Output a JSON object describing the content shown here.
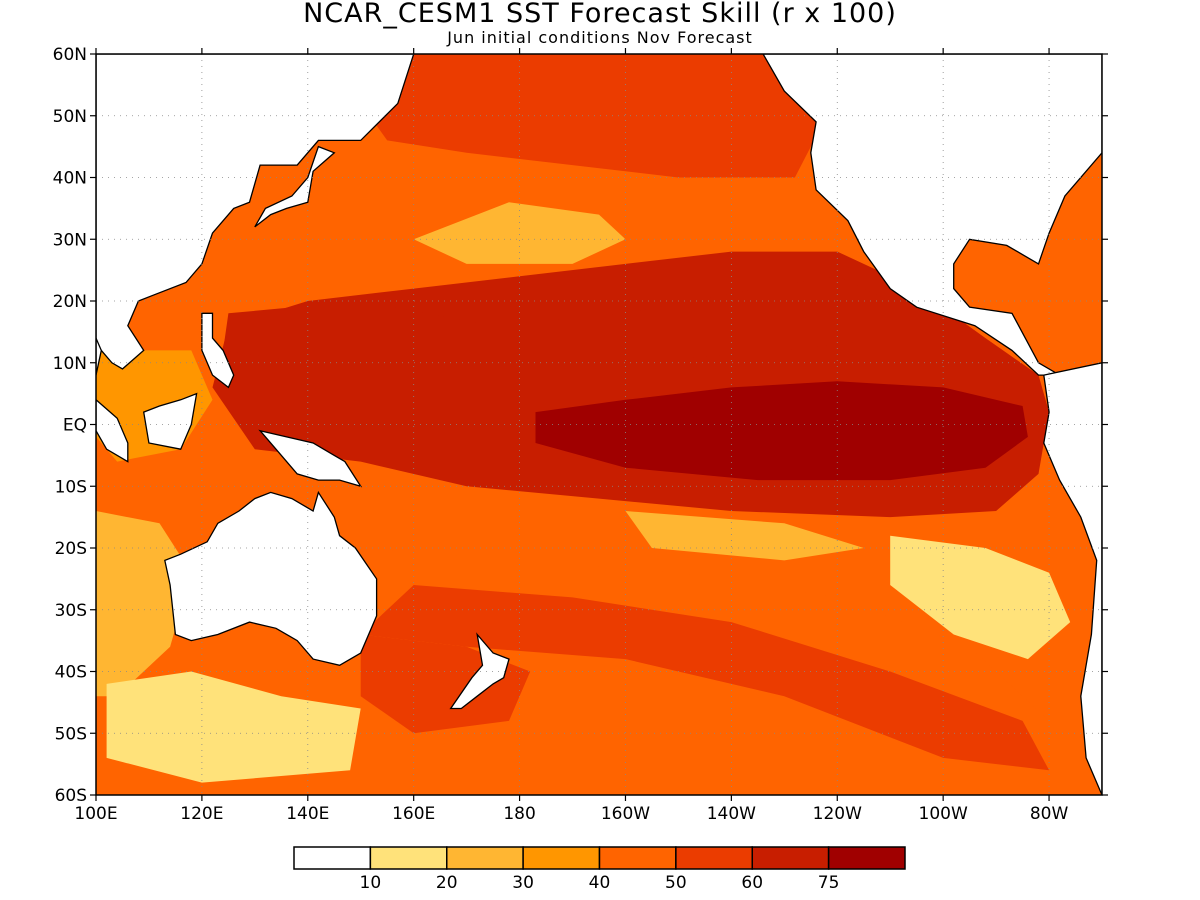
{
  "title": "NCAR_CESM1 SST Forecast Skill (r x 100)",
  "subtitle": "Jun initial conditions   Nov Forecast",
  "map": {
    "lon_range": [
      100,
      290
    ],
    "lat_range": [
      -60,
      60
    ],
    "lat_ticks": [
      {
        "value": 60,
        "label": "60N"
      },
      {
        "value": 50,
        "label": "50N"
      },
      {
        "value": 40,
        "label": "40N"
      },
      {
        "value": 30,
        "label": "30N"
      },
      {
        "value": 20,
        "label": "20N"
      },
      {
        "value": 10,
        "label": "10N"
      },
      {
        "value": 0,
        "label": "EQ"
      },
      {
        "value": -10,
        "label": "10S"
      },
      {
        "value": -20,
        "label": "20S"
      },
      {
        "value": -30,
        "label": "30S"
      },
      {
        "value": -40,
        "label": "40S"
      },
      {
        "value": -50,
        "label": "50S"
      },
      {
        "value": -60,
        "label": "60S"
      }
    ],
    "lon_ticks": [
      {
        "value": 100,
        "label": "100E"
      },
      {
        "value": 120,
        "label": "120E"
      },
      {
        "value": 140,
        "label": "140E"
      },
      {
        "value": 160,
        "label": "160E"
      },
      {
        "value": 180,
        "label": "180"
      },
      {
        "value": 200,
        "label": "160W"
      },
      {
        "value": 220,
        "label": "140W"
      },
      {
        "value": 240,
        "label": "120W"
      },
      {
        "value": 260,
        "label": "100W"
      },
      {
        "value": 280,
        "label": "80W"
      }
    ],
    "grid": "dotted"
  },
  "colorbar": {
    "colors": [
      "#ffffff",
      "#ffe27a",
      "#ffb632",
      "#ff9600",
      "#ff6400",
      "#eb3c00",
      "#c81e00",
      "#a00000"
    ],
    "labels": [
      "10",
      "20",
      "30",
      "40",
      "50",
      "60",
      "75"
    ]
  },
  "regions": [
    {
      "name": "background-skill",
      "level": 4,
      "polygon": [
        [
          100,
          60
        ],
        [
          290,
          60
        ],
        [
          290,
          -60
        ],
        [
          100,
          -60
        ]
      ]
    },
    {
      "name": "eastern-pacific-warm-tongue",
      "level": 6,
      "polygon": [
        [
          160,
          22
        ],
        [
          180,
          24
        ],
        [
          200,
          26
        ],
        [
          220,
          28
        ],
        [
          240,
          28
        ],
        [
          255,
          22
        ],
        [
          268,
          14
        ],
        [
          278,
          8
        ],
        [
          280,
          2
        ],
        [
          278,
          -8
        ],
        [
          270,
          -14
        ],
        [
          250,
          -15
        ],
        [
          220,
          -14
        ],
        [
          195,
          -12
        ],
        [
          170,
          -10
        ],
        [
          150,
          -6
        ],
        [
          130,
          -4
        ],
        [
          122,
          6
        ],
        [
          125,
          16
        ],
        [
          140,
          20
        ]
      ]
    },
    {
      "name": "north-pacific-band",
      "level": 5,
      "polygon": [
        [
          150,
          60
        ],
        [
          240,
          60
        ],
        [
          238,
          50
        ],
        [
          232,
          40
        ],
        [
          210,
          40
        ],
        [
          190,
          42
        ],
        [
          170,
          44
        ],
        [
          155,
          46
        ],
        [
          150,
          52
        ]
      ]
    },
    {
      "name": "north-tropical-high",
      "level": 6,
      "polygon": [
        [
          125,
          18
        ],
        [
          150,
          20
        ],
        [
          175,
          16
        ],
        [
          200,
          18
        ],
        [
          225,
          22
        ],
        [
          240,
          24
        ],
        [
          250,
          20
        ],
        [
          250,
          14
        ],
        [
          230,
          12
        ],
        [
          200,
          10
        ],
        [
          170,
          10
        ],
        [
          140,
          10
        ],
        [
          124,
          12
        ]
      ]
    },
    {
      "name": "equatorial-core",
      "level": 7,
      "polygon": [
        [
          183,
          2
        ],
        [
          200,
          4
        ],
        [
          220,
          6
        ],
        [
          240,
          7
        ],
        [
          260,
          6
        ],
        [
          275,
          3
        ],
        [
          276,
          -2
        ],
        [
          268,
          -7
        ],
        [
          250,
          -9
        ],
        [
          225,
          -9
        ],
        [
          200,
          -7
        ],
        [
          183,
          -3
        ]
      ]
    },
    {
      "name": "south-pacific-moderate",
      "level": 4,
      "polygon": [
        [
          150,
          -20
        ],
        [
          180,
          -22
        ],
        [
          210,
          -24
        ],
        [
          240,
          -28
        ],
        [
          265,
          -36
        ],
        [
          280,
          -48
        ],
        [
          288,
          -58
        ],
        [
          288,
          -60
        ],
        [
          130,
          -60
        ],
        [
          130,
          -44
        ],
        [
          140,
          -34
        ]
      ]
    },
    {
      "name": "south-pacific-diagonal",
      "level": 5,
      "polygon": [
        [
          160,
          -26
        ],
        [
          190,
          -28
        ],
        [
          220,
          -32
        ],
        [
          250,
          -40
        ],
        [
          275,
          -48
        ],
        [
          280,
          -56
        ],
        [
          260,
          -54
        ],
        [
          230,
          -44
        ],
        [
          200,
          -38
        ],
        [
          170,
          -36
        ],
        [
          150,
          -34
        ]
      ]
    },
    {
      "name": "subtropical-north-low",
      "level": 2,
      "polygon": [
        [
          160,
          30
        ],
        [
          178,
          36
        ],
        [
          195,
          34
        ],
        [
          200,
          30
        ],
        [
          190,
          26
        ],
        [
          170,
          26
        ]
      ]
    },
    {
      "name": "southeast-pacific-low",
      "level": 1,
      "polygon": [
        [
          250,
          -18
        ],
        [
          268,
          -20
        ],
        [
          280,
          -24
        ],
        [
          284,
          -32
        ],
        [
          276,
          -38
        ],
        [
          262,
          -34
        ],
        [
          250,
          -26
        ]
      ]
    },
    {
      "name": "south-central-low",
      "level": 2,
      "polygon": [
        [
          200,
          -14
        ],
        [
          230,
          -16
        ],
        [
          245,
          -20
        ],
        [
          230,
          -22
        ],
        [
          205,
          -20
        ]
      ]
    },
    {
      "name": "indian-ocean-west-low",
      "level": 2,
      "polygon": [
        [
          100,
          -14
        ],
        [
          112,
          -16
        ],
        [
          118,
          -24
        ],
        [
          114,
          -36
        ],
        [
          104,
          -44
        ],
        [
          100,
          -44
        ]
      ]
    },
    {
      "name": "south-indian-low",
      "level": 1,
      "polygon": [
        [
          102,
          -42
        ],
        [
          118,
          -40
        ],
        [
          135,
          -44
        ],
        [
          150,
          -46
        ],
        [
          148,
          -56
        ],
        [
          120,
          -58
        ],
        [
          102,
          -54
        ]
      ]
    },
    {
      "name": "tasman-high",
      "level": 5,
      "polygon": [
        [
          150,
          -34
        ],
        [
          170,
          -36
        ],
        [
          182,
          -40
        ],
        [
          178,
          -48
        ],
        [
          160,
          -50
        ],
        [
          150,
          -44
        ]
      ]
    },
    {
      "name": "north-indian-area",
      "level": 3,
      "polygon": [
        [
          100,
          12
        ],
        [
          118,
          12
        ],
        [
          122,
          4
        ],
        [
          116,
          -4
        ],
        [
          104,
          -6
        ],
        [
          100,
          -2
        ]
      ]
    }
  ],
  "land": [
    {
      "name": "australia-landmass",
      "polygon": [
        [
          113,
          -22
        ],
        [
          114,
          -26
        ],
        [
          115,
          -34
        ],
        [
          118,
          -35
        ],
        [
          123,
          -34
        ],
        [
          129,
          -32
        ],
        [
          134,
          -33
        ],
        [
          138,
          -35
        ],
        [
          141,
          -38
        ],
        [
          146,
          -39
        ],
        [
          150,
          -37
        ],
        [
          153,
          -31
        ],
        [
          153,
          -25
        ],
        [
          149,
          -20
        ],
        [
          146,
          -18
        ],
        [
          145,
          -15
        ],
        [
          142,
          -11
        ],
        [
          141,
          -14
        ],
        [
          137,
          -12
        ],
        [
          133,
          -11
        ],
        [
          130,
          -12
        ],
        [
          127,
          -14
        ],
        [
          123,
          -16
        ],
        [
          121,
          -19
        ],
        [
          116,
          -21
        ]
      ]
    },
    {
      "name": "asia-landmass",
      "polygon": [
        [
          100,
          60
        ],
        [
          160,
          60
        ],
        [
          157,
          52
        ],
        [
          150,
          46
        ],
        [
          142,
          46
        ],
        [
          138,
          42
        ],
        [
          131,
          42
        ],
        [
          129,
          36
        ],
        [
          126,
          35
        ],
        [
          122,
          31
        ],
        [
          120,
          26
        ],
        [
          117,
          23
        ],
        [
          111,
          21
        ],
        [
          108,
          20
        ],
        [
          106,
          16
        ],
        [
          109,
          12
        ],
        [
          105,
          9
        ],
        [
          103,
          10
        ],
        [
          100,
          13
        ]
      ]
    },
    {
      "name": "north-america-landmass",
      "polygon": [
        [
          226,
          60
        ],
        [
          290,
          60
        ],
        [
          290,
          44
        ],
        [
          283,
          37
        ],
        [
          280,
          31
        ],
        [
          278,
          26
        ],
        [
          272,
          29
        ],
        [
          265,
          30
        ],
        [
          262,
          26
        ],
        [
          262,
          22
        ],
        [
          265,
          19
        ],
        [
          273,
          18
        ],
        [
          278,
          10
        ],
        [
          282,
          8
        ],
        [
          278,
          8
        ],
        [
          273,
          12
        ],
        [
          266,
          16
        ],
        [
          255,
          19
        ],
        [
          250,
          22
        ],
        [
          245,
          28
        ],
        [
          242,
          33
        ],
        [
          236,
          38
        ],
        [
          235,
          44
        ],
        [
          236,
          49
        ],
        [
          230,
          54
        ]
      ]
    },
    {
      "name": "south-america-landmass",
      "polygon": [
        [
          279,
          8
        ],
        [
          290,
          10
        ],
        [
          290,
          -60
        ],
        [
          287,
          -54
        ],
        [
          286,
          -44
        ],
        [
          288,
          -34
        ],
        [
          289,
          -22
        ],
        [
          286,
          -15
        ],
        [
          282,
          -9
        ],
        [
          279,
          -3
        ],
        [
          280,
          2
        ]
      ]
    },
    {
      "name": "indonesia-borneo",
      "polygon": [
        [
          109,
          2
        ],
        [
          112,
          3
        ],
        [
          116,
          4
        ],
        [
          119,
          5
        ],
        [
          118,
          0
        ],
        [
          116,
          -4
        ],
        [
          110,
          -3
        ]
      ]
    },
    {
      "name": "indonesia-sumatra",
      "polygon": [
        [
          100,
          4
        ],
        [
          104,
          1
        ],
        [
          106,
          -3
        ],
        [
          106,
          -6
        ],
        [
          102,
          -4
        ],
        [
          100,
          -1
        ]
      ]
    },
    {
      "name": "new-guinea",
      "polygon": [
        [
          131,
          -1
        ],
        [
          136,
          -2
        ],
        [
          141,
          -3
        ],
        [
          145,
          -5
        ],
        [
          147,
          -6
        ],
        [
          150,
          -10
        ],
        [
          146,
          -9
        ],
        [
          142,
          -9
        ],
        [
          138,
          -8
        ],
        [
          134,
          -4
        ]
      ]
    },
    {
      "name": "philippines",
      "polygon": [
        [
          120,
          18
        ],
        [
          122,
          18
        ],
        [
          122,
          14
        ],
        [
          124,
          12
        ],
        [
          126,
          8
        ],
        [
          125,
          6
        ],
        [
          122,
          8
        ],
        [
          120,
          12
        ]
      ]
    },
    {
      "name": "japan",
      "polygon": [
        [
          130,
          32
        ],
        [
          133,
          34
        ],
        [
          136,
          35
        ],
        [
          140,
          36
        ],
        [
          141,
          41
        ],
        [
          145,
          44
        ],
        [
          142,
          45
        ],
        [
          140,
          40
        ],
        [
          137,
          37
        ],
        [
          132,
          35
        ]
      ]
    },
    {
      "name": "new-zealand",
      "polygon": [
        [
          172,
          -34
        ],
        [
          175,
          -37
        ],
        [
          178,
          -38
        ],
        [
          177,
          -41
        ],
        [
          175,
          -42
        ],
        [
          172,
          -44
        ],
        [
          169,
          -46
        ],
        [
          167,
          -46
        ],
        [
          171,
          -41
        ],
        [
          173,
          -39
        ]
      ]
    },
    {
      "name": "sri-lanka-india-tip",
      "polygon": [
        [
          100,
          14
        ],
        [
          101,
          12
        ],
        [
          100,
          8
        ]
      ]
    }
  ]
}
